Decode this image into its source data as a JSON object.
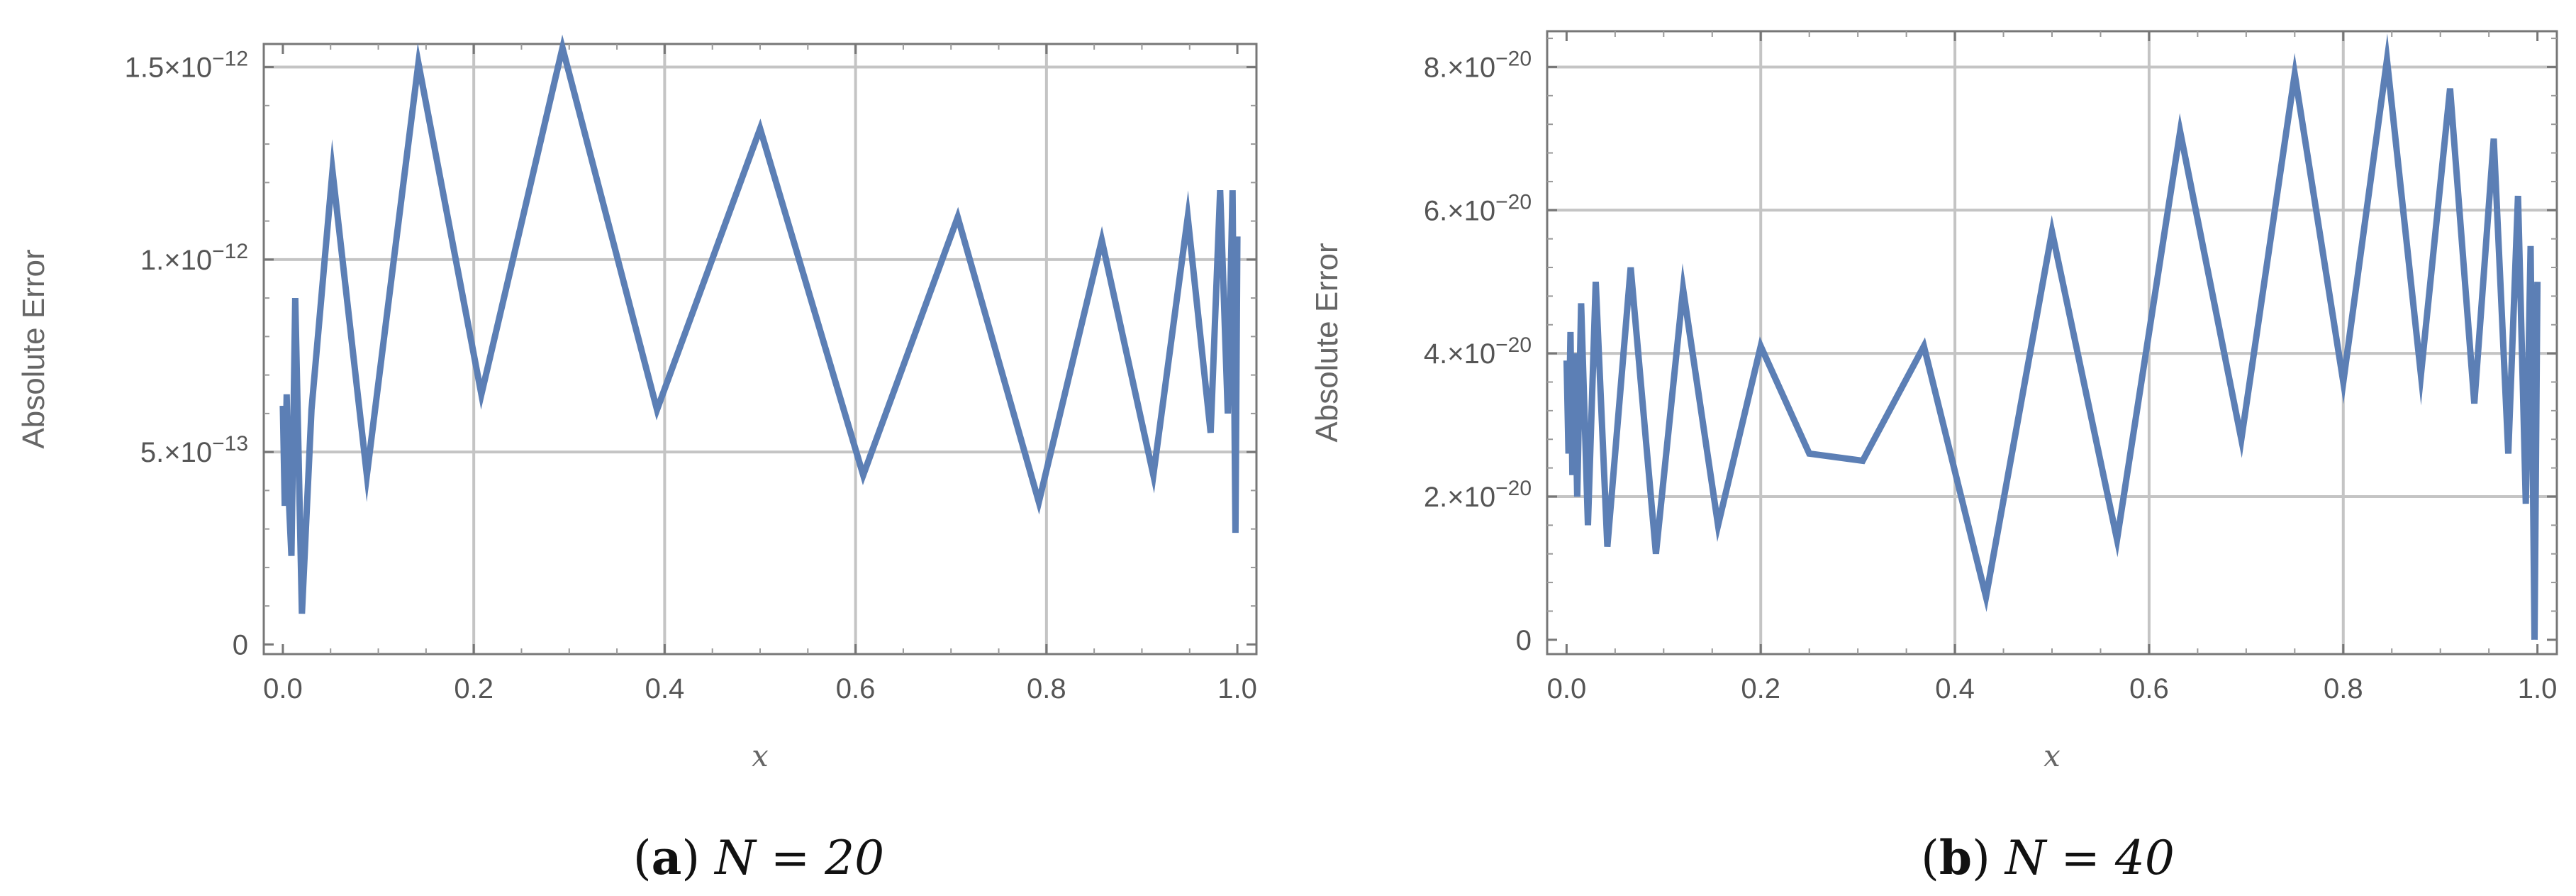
{
  "chart_data": [
    {
      "type": "line",
      "panel_tag": "a",
      "caption_math": "N = 20",
      "xlabel": "x",
      "ylabel": "Absolute Error",
      "xlim": [
        -0.02,
        1.02
      ],
      "ylim": [
        -2.5e-14,
        1.56e-12
      ],
      "x_ticks": [
        0.0,
        0.2,
        0.4,
        0.6,
        0.8,
        1.0
      ],
      "x_tick_labels": [
        "0.0",
        "0.2",
        "0.4",
        "0.6",
        "0.8",
        "1.0"
      ],
      "y_ticks": [
        0,
        5e-13,
        1e-12,
        1.5e-12
      ],
      "y_tick_labels": [
        {
          "mantissa": "0",
          "exponent": ""
        },
        {
          "mantissa": "5.×10",
          "exponent": "−13"
        },
        {
          "mantissa": "1.×10",
          "exponent": "−12"
        },
        {
          "mantissa": "1.5×10",
          "exponent": "−12"
        }
      ],
      "grid": true,
      "color": "#5c7fb5",
      "series": [
        {
          "x": [
            0.0,
            0.002,
            0.004,
            0.006,
            0.009,
            0.013,
            0.02,
            0.03,
            0.052,
            0.088,
            0.142,
            0.208,
            0.293,
            0.392,
            0.5,
            0.608,
            0.707,
            0.792,
            0.858,
            0.912,
            0.948,
            0.972,
            0.982,
            0.99,
            0.995,
            0.998,
            1.0
          ],
          "y": [
            6.2e-13,
            3.6e-13,
            6.5e-13,
            3.9e-13,
            2.3e-13,
            9e-13,
            8e-14,
            6.1e-13,
            1.23e-12,
            4.4e-13,
            1.51e-12,
            6.5e-13,
            1.55e-12,
            6.1e-13,
            1.34e-12,
            4.4e-13,
            1.11e-12,
            3.7e-13,
            1.05e-12,
            4.4e-13,
            1.11e-12,
            5.5e-13,
            1.18e-12,
            6e-13,
            1.18e-12,
            2.9e-13,
            1.06e-12
          ]
        }
      ]
    },
    {
      "type": "line",
      "panel_tag": "b",
      "caption_math": "N = 40",
      "xlabel": "x",
      "ylabel": "Absolute Error",
      "xlim": [
        -0.02,
        1.02
      ],
      "ylim": [
        -2e-21,
        8.5e-20
      ],
      "x_ticks": [
        0.0,
        0.2,
        0.4,
        0.6,
        0.8,
        1.0
      ],
      "x_tick_labels": [
        "0.0",
        "0.2",
        "0.4",
        "0.6",
        "0.8",
        "1.0"
      ],
      "y_ticks": [
        0,
        2e-20,
        4e-20,
        6e-20,
        8e-20
      ],
      "y_tick_labels": [
        {
          "mantissa": "0",
          "exponent": ""
        },
        {
          "mantissa": "2.×10",
          "exponent": "−20"
        },
        {
          "mantissa": "4.×10",
          "exponent": "−20"
        },
        {
          "mantissa": "6.×10",
          "exponent": "−20"
        },
        {
          "mantissa": "8.×10",
          "exponent": "−20"
        }
      ],
      "grid": true,
      "color": "#5c7fb5",
      "series": [
        {
          "x": [
            0.0,
            0.002,
            0.004,
            0.006,
            0.008,
            0.011,
            0.015,
            0.022,
            0.03,
            0.042,
            0.066,
            0.092,
            0.12,
            0.156,
            0.2,
            0.25,
            0.305,
            0.368,
            0.432,
            0.5,
            0.567,
            0.632,
            0.695,
            0.75,
            0.8,
            0.845,
            0.88,
            0.91,
            0.935,
            0.955,
            0.97,
            0.98,
            0.988,
            0.993,
            0.997,
            1.0
          ],
          "y": [
            3.9e-20,
            2.6e-20,
            4.3e-20,
            2.3e-20,
            4e-20,
            2e-20,
            4.7e-20,
            1.6e-20,
            5e-20,
            1.3e-20,
            5.2e-20,
            1.2e-20,
            4.9e-20,
            1.6e-20,
            4.1e-20,
            2.6e-20,
            2.5e-20,
            4.1e-20,
            6e-21,
            5.7e-20,
            1.4e-20,
            7.1e-20,
            2.8e-20,
            7.9e-20,
            3.6e-20,
            8.1e-20,
            3.7e-20,
            7.7e-20,
            3.3e-20,
            7e-20,
            2.6e-20,
            6.2e-20,
            1.9e-20,
            5.5e-20,
            0.0,
            5e-20
          ]
        }
      ]
    }
  ]
}
